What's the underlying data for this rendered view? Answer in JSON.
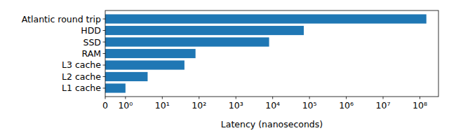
{
  "chart_data": {
    "type": "bar",
    "orientation": "horizontal",
    "log": "x",
    "categories": [
      "L1 cache",
      "L2 cache",
      "L3 cache",
      "RAM",
      "SSD",
      "HDD",
      "Atlantic round trip"
    ],
    "values": [
      1,
      4,
      40,
      80,
      8000,
      70000,
      150000000
    ],
    "color": "#1f77b4",
    "xlabel": "Latency (nanoseconds)",
    "xlim": [
      0,
      320000000
    ],
    "xticks": [
      0,
      {
        "value": 1,
        "label": "10⁰"
      },
      {
        "value": 10,
        "label": "10¹"
      },
      {
        "value": 100,
        "label": "10²"
      },
      {
        "value": 1000,
        "label": "10³"
      },
      {
        "value": 10000,
        "label": "10⁴"
      },
      {
        "value": 100000,
        "label": "10⁵"
      },
      {
        "value": 1000000,
        "label": "10⁶"
      },
      {
        "value": 10000000,
        "label": "10⁷"
      },
      {
        "value": 100000000,
        "label": "10⁸"
      }
    ],
    "grid": false
  }
}
